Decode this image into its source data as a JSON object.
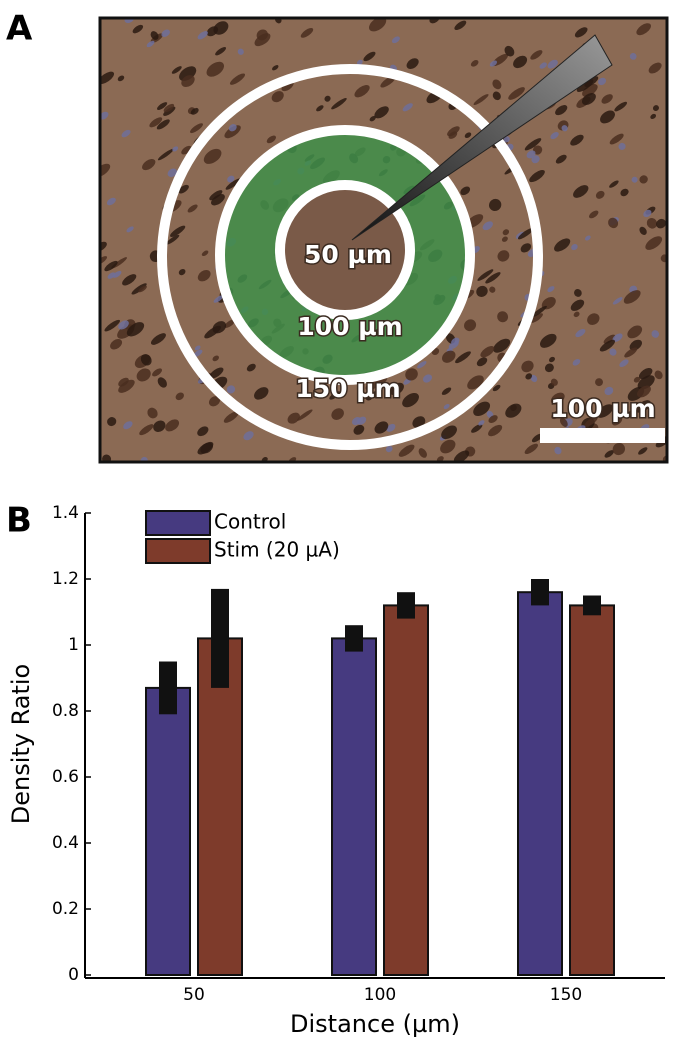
{
  "panel_labels": [
    "A",
    "B"
  ],
  "image": {
    "ring_labels": [
      "50 µm",
      "100 µm",
      "150 µm"
    ],
    "scale_bar": "100 µm"
  },
  "chart_data": {
    "type": "bar",
    "categories": [
      "50",
      "100",
      "150"
    ],
    "series": [
      {
        "name": "Control",
        "color": "#463a80",
        "values": [
          0.87,
          1.02,
          1.16
        ],
        "errors": [
          0.08,
          0.04,
          0.04
        ]
      },
      {
        "name": "Stim (20 µA)",
        "color": "#7e3b2b",
        "values": [
          1.02,
          1.12,
          1.12
        ],
        "errors": [
          0.15,
          0.04,
          0.03
        ]
      }
    ],
    "x_label": "Distance (µm)",
    "y_label": "Density Ratio",
    "ylim": [
      0,
      1.4
    ],
    "yticks": [
      0,
      0.2,
      0.4,
      0.6,
      0.8,
      1,
      1.2,
      1.4
    ],
    "legend": "upper left"
  }
}
